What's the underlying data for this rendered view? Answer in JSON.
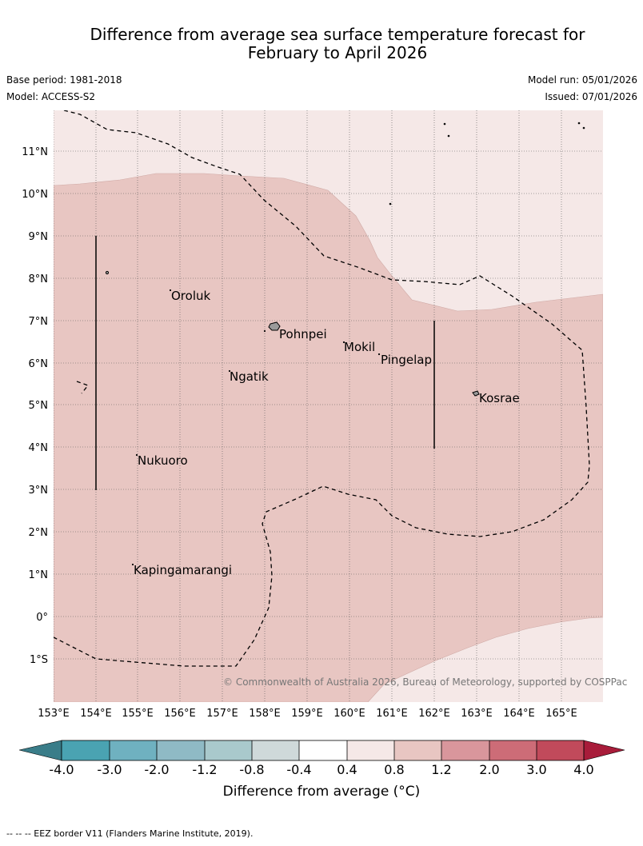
{
  "header": {
    "title_line1": "Difference from average sea surface temperature forecast for",
    "title_line2": "February to April 2026",
    "base_period": "Base period: 1981-2018",
    "model": "Model: ACCESS-S2",
    "model_run": "Model run: 05/01/2026",
    "issued": "Issued: 07/01/2026"
  },
  "map": {
    "lat_labels": [
      "11°N",
      "10°N",
      "9°N",
      "8°N",
      "7°N",
      "6°N",
      "5°N",
      "4°N",
      "3°N",
      "2°N",
      "1°N",
      "0°",
      "1°S"
    ],
    "lon_labels": [
      "153°E",
      "154°E",
      "155°E",
      "156°E",
      "157°E",
      "158°E",
      "159°E",
      "160°E",
      "161°E",
      "162°E",
      "163°E",
      "164°E",
      "165°E"
    ],
    "places": {
      "oroluk": "Oroluk",
      "pohnpei": "Pohnpei",
      "mokil": "Mokil",
      "pingelap": "Pingelap",
      "ngatik": "Ngatik",
      "kosrae": "Kosrae",
      "nukuoro": "Nukuoro",
      "kapingamarangi": "Kapingamarangi"
    },
    "copyright": "© Commonwealth of Australia 2026, Bureau of Meteorology, supported by COSPPac"
  },
  "colorbar": {
    "ticks": [
      "-4.0",
      "-3.0",
      "-2.0",
      "-1.2",
      "-0.8",
      "-0.4",
      "0.4",
      "0.8",
      "1.2",
      "2.0",
      "3.0",
      "4.0"
    ],
    "colors": [
      "#3a7d89",
      "#4aa3b2",
      "#6fb1c0",
      "#8fbac5",
      "#a9c9cc",
      "#cfd9da",
      "#ffffff",
      "#f5e8e7",
      "#e8c6c2",
      "#d9969c",
      "#cd6c77",
      "#c14a5b",
      "#a81c3a"
    ],
    "label": "Difference from average (°C)"
  },
  "footnote": "--  --  -- EEZ border V11 (Flanders Marine Institute, 2019)."
}
